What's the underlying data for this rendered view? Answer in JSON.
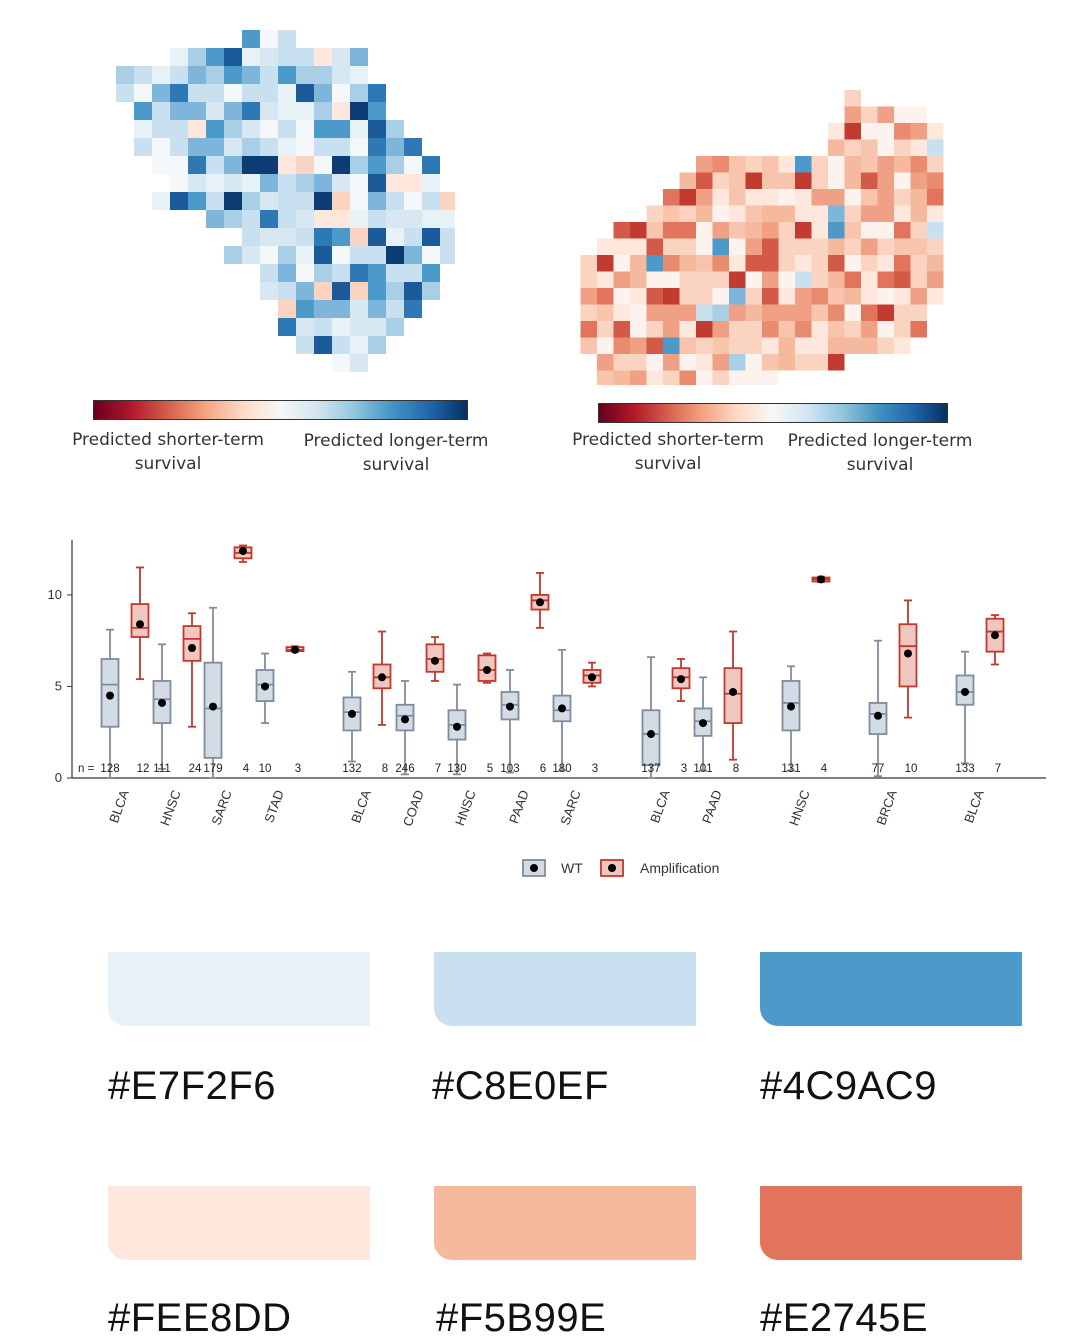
{
  "heatmaps": [
    {
      "name": "left",
      "colorbar": {
        "left_label": "Predicted shorter-term survival",
        "right_label": "Predicted longer-term survival",
        "left_line1": "Predicted shorter-term",
        "left_line2": "survival",
        "right_line1": "Predicted longer-term",
        "right_line2": "survival"
      }
    },
    {
      "name": "right",
      "colorbar": {
        "left_label": "Predicted shorter-term survival",
        "right_label": "Predicted longer-term survival",
        "left_line1": "Predicted shorter-term",
        "left_line2": "survival",
        "right_line1": "Predicted longer-term",
        "right_line2": "survival"
      }
    }
  ],
  "colorscale": [
    "#67001F",
    "#B2182B",
    "#D6604D",
    "#F4A582",
    "#FDDBC7",
    "#F7F7F7",
    "#D1E5F0",
    "#92C5DE",
    "#4393C3",
    "#2166AC",
    "#053061"
  ],
  "chart_data": {
    "type": "box",
    "ylim": [
      0,
      13
    ],
    "yticks": [
      0,
      5,
      10
    ],
    "n_prefix": "n =",
    "legend": {
      "wt": "WT",
      "amp": "Amplification"
    },
    "series_colors": {
      "wt_fill": "#D3DBE5",
      "wt_stroke": "#7F8C9C",
      "amp_fill": "#F0C6C0",
      "amp_stroke": "#C0392B"
    },
    "groups": [
      {
        "label": "BLCA",
        "wt": {
          "n": "128",
          "min": 0.0,
          "q1": 2.8,
          "median": 5.1,
          "q3": 6.5,
          "max": 8.1,
          "mean": 4.5
        },
        "amp": {
          "n": "12",
          "min": 5.4,
          "q1": 7.7,
          "median": 8.2,
          "q3": 9.5,
          "max": 11.5,
          "mean": 8.4
        }
      },
      {
        "label": "HNSC",
        "wt": {
          "n": "111",
          "min": 0.5,
          "q1": 3.0,
          "median": 4.3,
          "q3": 5.3,
          "max": 7.3,
          "mean": 4.1
        },
        "amp": {
          "n": "24",
          "min": 2.8,
          "q1": 6.4,
          "median": 7.6,
          "q3": 8.3,
          "max": 9.0,
          "mean": 7.1
        }
      },
      {
        "label": "SARC",
        "wt": {
          "n": "179",
          "min": 0.0,
          "q1": 1.1,
          "median": 3.8,
          "q3": 6.3,
          "max": 9.3,
          "mean": 3.9
        },
        "amp": {
          "n": "4",
          "min": 11.8,
          "q1": 12.0,
          "median": 12.3,
          "q3": 12.6,
          "max": 12.7,
          "mean": 12.4
        }
      },
      {
        "label": "STAD",
        "wt": {
          "n": "10",
          "min": 3.0,
          "q1": 4.2,
          "median": 5.1,
          "q3": 5.9,
          "max": 6.8,
          "mean": 5.0
        },
        "amp": {
          "n": "3",
          "min": 6.9,
          "q1": 6.95,
          "median": 7.0,
          "q3": 7.15,
          "max": 7.2,
          "mean": 7.0
        }
      },
      {
        "label": "BLCA",
        "wt": {
          "n": "132",
          "min": 0.9,
          "q1": 2.6,
          "median": 3.6,
          "q3": 4.4,
          "max": 5.8,
          "mean": 3.5
        },
        "amp": {
          "n": "8",
          "min": 2.9,
          "q1": 4.9,
          "median": 5.5,
          "q3": 6.2,
          "max": 8.0,
          "mean": 5.5
        }
      },
      {
        "label": "COAD",
        "wt": {
          "n": "246",
          "min": 0.2,
          "q1": 2.6,
          "median": 3.4,
          "q3": 4.0,
          "max": 5.3,
          "mean": 3.2
        },
        "amp": {
          "n": "7",
          "min": 5.3,
          "q1": 5.8,
          "median": 6.5,
          "q3": 7.3,
          "max": 7.7,
          "mean": 6.4
        }
      },
      {
        "label": "HNSC",
        "wt": {
          "n": "130",
          "min": 0.2,
          "q1": 2.1,
          "median": 2.9,
          "q3": 3.7,
          "max": 5.1,
          "mean": 2.8
        },
        "amp": {
          "n": "5",
          "min": 5.2,
          "q1": 5.3,
          "median": 5.9,
          "q3": 6.7,
          "max": 6.8,
          "mean": 5.9
        }
      },
      {
        "label": "PAAD",
        "wt": {
          "n": "103",
          "min": 0.3,
          "q1": 3.2,
          "median": 4.0,
          "q3": 4.7,
          "max": 5.9,
          "mean": 3.9
        },
        "amp": {
          "n": "6",
          "min": 8.2,
          "q1": 9.2,
          "median": 9.7,
          "q3": 10.0,
          "max": 11.2,
          "mean": 9.6
        }
      },
      {
        "label": "SARC",
        "wt": {
          "n": "180",
          "min": 0.4,
          "q1": 3.1,
          "median": 3.7,
          "q3": 4.5,
          "max": 7.0,
          "mean": 3.8
        },
        "amp": {
          "n": "3",
          "min": 5.0,
          "q1": 5.2,
          "median": 5.6,
          "q3": 5.9,
          "max": 6.3,
          "mean": 5.5
        }
      },
      {
        "label": "BLCA",
        "wt": {
          "n": "137",
          "min": 0.0,
          "q1": 0.7,
          "median": 2.4,
          "q3": 3.7,
          "max": 6.6,
          "mean": 2.4
        },
        "amp": {
          "n": "3",
          "min": 4.2,
          "q1": 4.9,
          "median": 5.5,
          "q3": 6.0,
          "max": 6.5,
          "mean": 5.4
        }
      },
      {
        "label": "PAAD",
        "wt": {
          "n": "101",
          "min": 0.4,
          "q1": 2.3,
          "median": 3.1,
          "q3": 3.8,
          "max": 5.5,
          "mean": 3.0
        },
        "amp": {
          "n": "8",
          "min": 1.0,
          "q1": 3.0,
          "median": 4.6,
          "q3": 6.0,
          "max": 8.0,
          "mean": 4.7
        }
      },
      {
        "label": "HNSC",
        "wt": {
          "n": "131",
          "min": 0.4,
          "q1": 2.6,
          "median": 4.1,
          "q3": 5.3,
          "max": 6.1,
          "mean": 3.9
        },
        "amp": {
          "n": "4",
          "min": 10.7,
          "q1": 10.75,
          "median": 10.85,
          "q3": 10.95,
          "max": 11.0,
          "mean": 10.85
        }
      },
      {
        "label": "BRCA",
        "wt": {
          "n": "77",
          "min": 0.1,
          "q1": 2.4,
          "median": 3.5,
          "q3": 4.1,
          "max": 7.5,
          "mean": 3.4
        },
        "amp": {
          "n": "10",
          "min": 3.3,
          "q1": 5.0,
          "median": 7.2,
          "q3": 8.4,
          "max": 9.7,
          "mean": 6.8
        }
      },
      {
        "label": "BLCA",
        "wt": {
          "n": "133",
          "min": 0.8,
          "q1": 4.0,
          "median": 4.7,
          "q3": 5.6,
          "max": 6.9,
          "mean": 4.7
        },
        "amp": {
          "n": "7",
          "min": 6.2,
          "q1": 6.9,
          "median": 8.0,
          "q3": 8.7,
          "max": 8.9,
          "mean": 7.8
        }
      }
    ]
  },
  "palette": [
    {
      "hex": "#E7F2F6",
      "label": "#E7F2F6"
    },
    {
      "hex": "#C8E0EF",
      "label": "#C8E0EF"
    },
    {
      "hex": "#4C9AC9",
      "label": "#4C9AC9"
    },
    {
      "hex": "#FEE8DD",
      "label": "#FEE8DD"
    },
    {
      "hex": "#F5B99E",
      "label": "#F5B99E"
    },
    {
      "hex": "#E2745E",
      "label": "#E2745E"
    }
  ]
}
